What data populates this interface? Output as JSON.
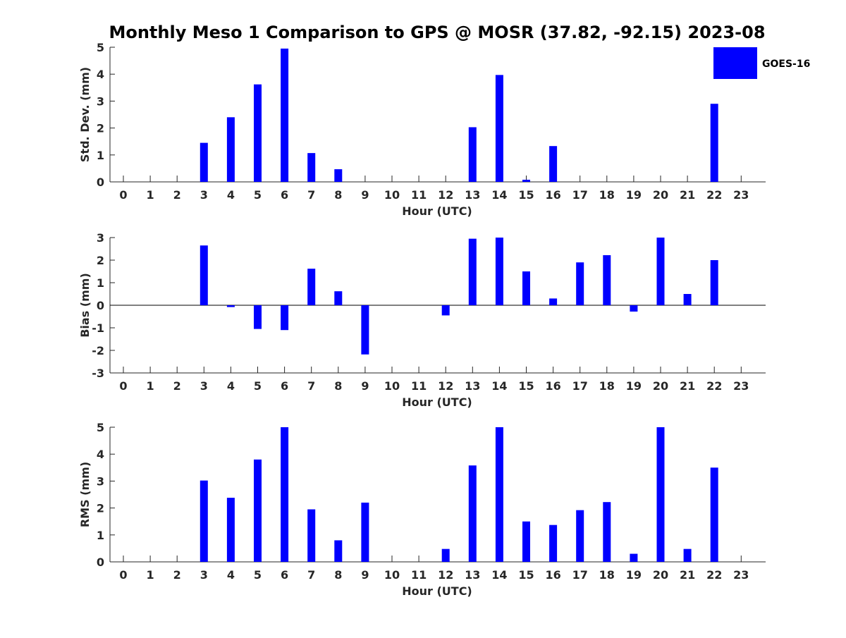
{
  "title": "Monthly Meso 1 Comparison to GPS @ MOSR (37.82, -92.15) 2023-08",
  "legend": {
    "label": "GOES-16",
    "color": "#0000ff"
  },
  "colors": {
    "bar": "#0000ff",
    "axis": "#262626",
    "zero_line": "#000000"
  },
  "chart_data": [
    {
      "type": "bar",
      "title": "Monthly Meso 1 Comparison to GPS @ MOSR (37.82, -92.15) 2023-08",
      "xlabel": "Hour (UTC)",
      "ylabel": "Std. Dev. (mm)",
      "categories": [
        "0",
        "1",
        "2",
        "3",
        "4",
        "5",
        "6",
        "7",
        "8",
        "9",
        "10",
        "11",
        "12",
        "13",
        "14",
        "15",
        "16",
        "17",
        "18",
        "19",
        "20",
        "21",
        "22",
        "23"
      ],
      "series": [
        {
          "name": "GOES-16",
          "values": [
            null,
            null,
            null,
            1.45,
            2.4,
            3.62,
            4.95,
            1.07,
            0.47,
            null,
            null,
            null,
            null,
            2.03,
            3.97,
            0.08,
            1.33,
            null,
            null,
            null,
            null,
            null,
            2.9,
            null
          ]
        }
      ],
      "ylim": [
        0,
        5
      ],
      "yticks": [
        0,
        1,
        2,
        3,
        4,
        5
      ],
      "grid": false,
      "legend_position": "top-right"
    },
    {
      "type": "bar",
      "xlabel": "Hour (UTC)",
      "ylabel": "Bias (mm)",
      "categories": [
        "0",
        "1",
        "2",
        "3",
        "4",
        "5",
        "6",
        "7",
        "8",
        "9",
        "10",
        "11",
        "12",
        "13",
        "14",
        "15",
        "16",
        "17",
        "18",
        "19",
        "20",
        "21",
        "22",
        "23"
      ],
      "series": [
        {
          "name": "GOES-16",
          "values": [
            null,
            null,
            null,
            2.65,
            -0.08,
            -1.05,
            -1.1,
            1.62,
            0.62,
            -2.18,
            null,
            null,
            -0.45,
            2.95,
            3.0,
            1.5,
            0.3,
            1.9,
            2.22,
            -0.28,
            3.0,
            0.5,
            2.0,
            null
          ]
        }
      ],
      "ylim": [
        -3,
        3
      ],
      "yticks": [
        -3,
        -2,
        -1,
        0,
        1,
        2,
        3
      ],
      "grid": false
    },
    {
      "type": "bar",
      "xlabel": "Hour (UTC)",
      "ylabel": "RMS (mm)",
      "categories": [
        "0",
        "1",
        "2",
        "3",
        "4",
        "5",
        "6",
        "7",
        "8",
        "9",
        "10",
        "11",
        "12",
        "13",
        "14",
        "15",
        "16",
        "17",
        "18",
        "19",
        "20",
        "21",
        "22",
        "23"
      ],
      "series": [
        {
          "name": "GOES-16",
          "values": [
            null,
            null,
            null,
            3.02,
            2.38,
            3.8,
            5.0,
            1.95,
            0.8,
            2.2,
            null,
            null,
            0.48,
            3.58,
            5.0,
            1.5,
            1.37,
            1.92,
            2.22,
            0.3,
            5.0,
            0.48,
            3.5,
            null
          ]
        }
      ],
      "ylim": [
        0,
        5
      ],
      "yticks": [
        0,
        1,
        2,
        3,
        4,
        5
      ],
      "grid": false
    }
  ]
}
